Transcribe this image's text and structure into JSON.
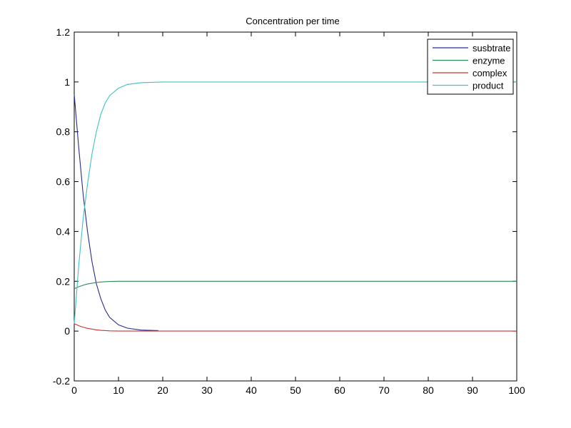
{
  "chart_data": {
    "type": "line",
    "title": "Concentration per time",
    "xlabel": "",
    "ylabel": "",
    "xlim": [
      0,
      100
    ],
    "ylim": [
      -0.2,
      1.2
    ],
    "xticks": [
      0,
      10,
      20,
      30,
      40,
      50,
      60,
      70,
      80,
      90,
      100
    ],
    "yticks": [
      -0.2,
      0,
      0.2,
      0.4,
      0.6,
      0.8,
      1,
      1.2
    ],
    "xtick_labels": [
      "0",
      "10",
      "20",
      "30",
      "40",
      "50",
      "60",
      "70",
      "80",
      "90",
      "100"
    ],
    "ytick_labels": [
      "-0.2",
      "0",
      "0.2",
      "0.4",
      "0.6",
      "0.8",
      "1",
      "1.2"
    ],
    "grid": false,
    "legend_position": "upper right",
    "x": [
      0,
      1,
      2,
      3,
      4,
      5,
      6,
      7,
      8,
      10,
      12,
      15,
      19,
      20,
      30,
      50,
      100
    ],
    "series": [
      {
        "name": "susbtrate",
        "color": "#2b2b8f",
        "x": [
          0,
          1,
          2,
          3,
          4,
          5,
          6,
          7,
          8,
          10,
          12,
          15,
          19
        ],
        "values": [
          0.95,
          0.74,
          0.55,
          0.4,
          0.28,
          0.19,
          0.13,
          0.085,
          0.055,
          0.025,
          0.012,
          0.004,
          0.002
        ]
      },
      {
        "name": "enzyme",
        "color": "#2e8b57",
        "x": [
          0,
          1,
          2,
          3,
          4,
          5,
          6,
          8,
          10,
          15,
          20,
          30,
          50,
          100
        ],
        "values": [
          0.17,
          0.178,
          0.184,
          0.189,
          0.192,
          0.195,
          0.197,
          0.199,
          0.2,
          0.2,
          0.2,
          0.2,
          0.2,
          0.2
        ]
      },
      {
        "name": "complex",
        "color": "#cc3333",
        "x": [
          0,
          1,
          2,
          3,
          4,
          5,
          6,
          8,
          10,
          15,
          20,
          30,
          50,
          100
        ],
        "values": [
          0.03,
          0.022,
          0.016,
          0.011,
          0.008,
          0.005,
          0.003,
          0.001,
          0.0,
          0.0,
          0.0,
          0.0,
          0.0,
          0.0
        ]
      },
      {
        "name": "product",
        "color": "#40c0c0",
        "x": [
          0,
          1,
          2,
          3,
          4,
          5,
          6,
          7,
          8,
          10,
          12,
          15,
          20,
          30,
          50,
          100
        ],
        "values": [
          0.03,
          0.26,
          0.45,
          0.59,
          0.71,
          0.8,
          0.87,
          0.915,
          0.945,
          0.975,
          0.99,
          0.997,
          1.0,
          1.0,
          1.0,
          1.0
        ]
      }
    ]
  },
  "legend": {
    "items": [
      {
        "label": "susbtrate",
        "color": "#2b2b8f"
      },
      {
        "label": "enzyme",
        "color": "#2e8b57"
      },
      {
        "label": "complex",
        "color": "#cc3333"
      },
      {
        "label": "product",
        "color": "#40c0c0"
      }
    ]
  }
}
